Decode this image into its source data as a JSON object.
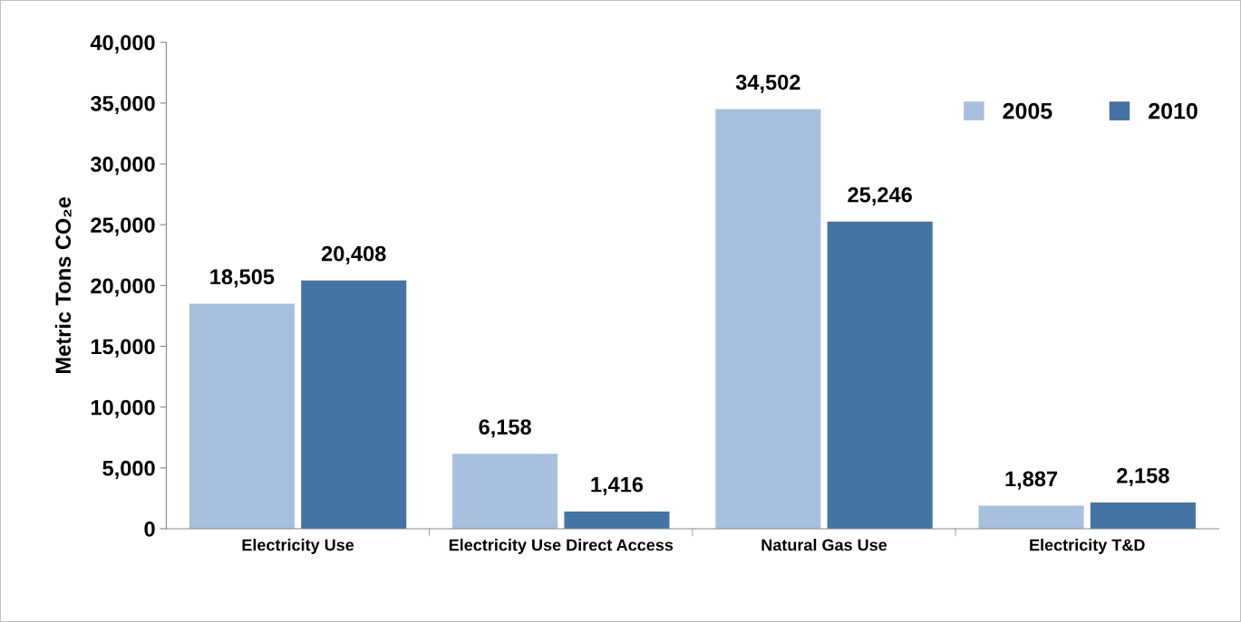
{
  "chart_data": {
    "type": "bar",
    "ylabel": "Metric Tons CO₂e",
    "categories": [
      "Electricity Use",
      "Electricity Use Direct Access",
      "Natural Gas Use",
      "Electricity T&D"
    ],
    "series": [
      {
        "name": "2005",
        "color": "#a7c0de",
        "values": [
          18505,
          6158,
          34502,
          1887
        ],
        "value_labels": [
          "18,505",
          "6,158",
          "34,502",
          "1,887"
        ]
      },
      {
        "name": "2010",
        "color": "#4573a4",
        "values": [
          20408,
          1416,
          25246,
          2158
        ],
        "value_labels": [
          "20,408",
          "1,416",
          "25,246",
          "2,158"
        ]
      }
    ],
    "ylim": [
      0,
      40000
    ],
    "yticks": [
      {
        "value": 0,
        "label": "0"
      },
      {
        "value": 5000,
        "label": "5,000"
      },
      {
        "value": 10000,
        "label": "10,000"
      },
      {
        "value": 15000,
        "label": "15,000"
      },
      {
        "value": 20000,
        "label": "20,000"
      },
      {
        "value": 25000,
        "label": "25,000"
      },
      {
        "value": 30000,
        "label": "30,000"
      },
      {
        "value": 35000,
        "label": "35,000"
      },
      {
        "value": 40000,
        "label": "40,000"
      }
    ],
    "grid": false,
    "legend": "top right"
  }
}
